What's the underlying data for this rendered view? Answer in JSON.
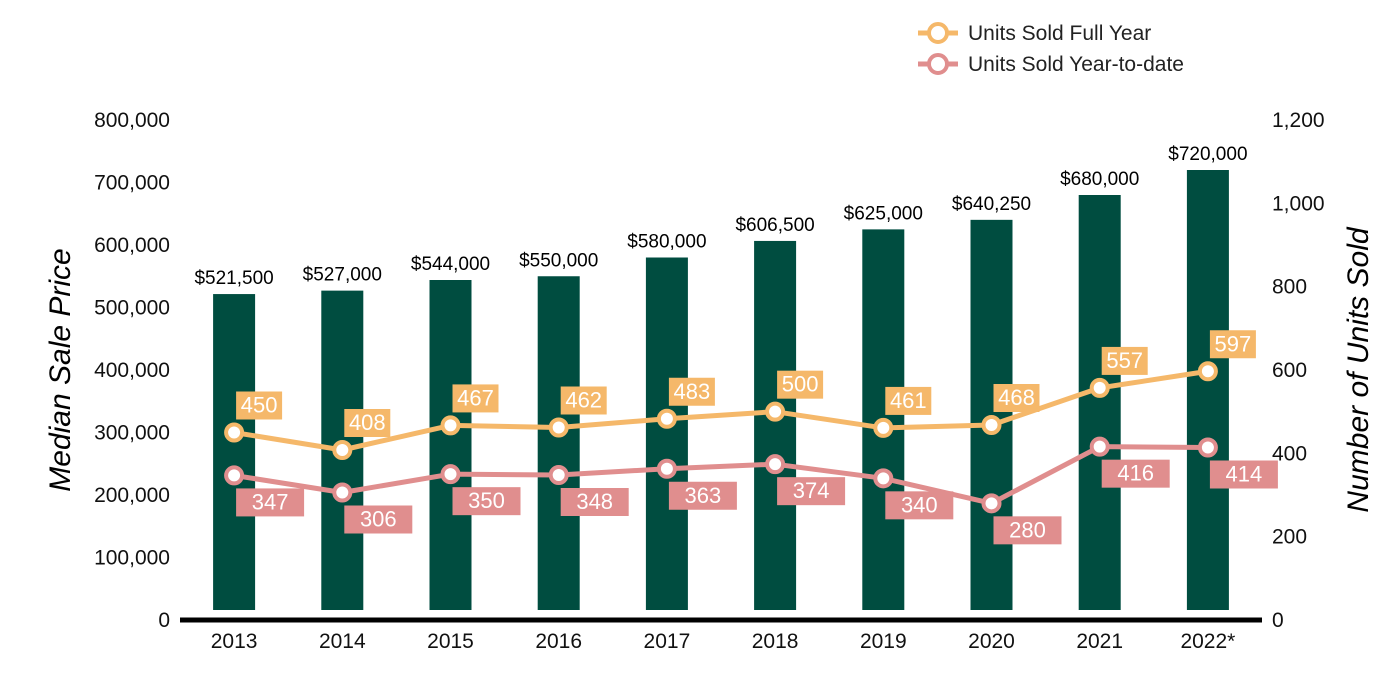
{
  "chart_data": {
    "type": "bar",
    "categories": [
      "2013",
      "2014",
      "2015",
      "2016",
      "2017",
      "2018",
      "2019",
      "2020",
      "2021",
      "2022*"
    ],
    "bar_series": {
      "values": [
        521500,
        527000,
        544000,
        550000,
        580000,
        606500,
        625000,
        640250,
        680000,
        720000
      ],
      "labels": [
        "$521,500",
        "$527,000",
        "$544,000",
        "$550,000",
        "$580,000",
        "$606,500",
        "$625,000",
        "$640,250",
        "$680,000",
        "$720,000"
      ],
      "color": "#004d40"
    },
    "line_series": [
      {
        "name": "Units Sold Full Year",
        "values": [
          450,
          408,
          467,
          462,
          483,
          500,
          461,
          468,
          557,
          597
        ],
        "color": "#f5b86a",
        "label_position": "above"
      },
      {
        "name": "Units Sold Year-to-date",
        "values": [
          347,
          306,
          350,
          348,
          363,
          374,
          340,
          280,
          416,
          414
        ],
        "color": "#e08e8e",
        "label_position": "below"
      }
    ],
    "ylabel": "Median Sale Price",
    "y2label": "Number of Units Sold",
    "ylim": [
      0,
      800000
    ],
    "y2lim": [
      0,
      1200
    ],
    "yticks": [
      "0",
      "100,000",
      "200,000",
      "300,000",
      "400,000",
      "500,000",
      "600,000",
      "700,000",
      "800,000"
    ],
    "y2ticks": [
      "0",
      "200",
      "400",
      "600",
      "800",
      "1,000",
      "1,200"
    ],
    "legend_position": "top-right",
    "grid": false
  }
}
